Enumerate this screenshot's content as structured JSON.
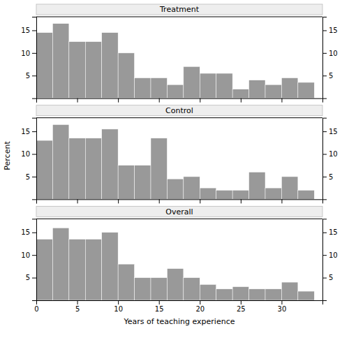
{
  "chart_data": [
    {
      "type": "histogram",
      "title": "Treatment",
      "bins": [
        0,
        2,
        4,
        6,
        8,
        10,
        12,
        14,
        16,
        18,
        20,
        22,
        24,
        26,
        28,
        30,
        32,
        34
      ],
      "values": [
        14.5,
        16.5,
        12.5,
        12.5,
        14.5,
        10.0,
        4.5,
        4.5,
        3.0,
        7.0,
        5.5,
        5.5,
        2.0,
        4.0,
        3.0,
        4.5,
        3.5
      ],
      "color": "#999999",
      "xlim": [
        0,
        35
      ],
      "ylim": [
        0,
        18
      ],
      "xticks": [
        0,
        5,
        10,
        15,
        20,
        25,
        30
      ],
      "yticks": [
        5,
        10,
        15
      ],
      "y2lim": [
        0,
        18
      ],
      "y2ticks": [
        5,
        10,
        15
      ],
      "tick_labels": "y"
    },
    {
      "type": "histogram",
      "title": "Control",
      "ylabel": "Percent",
      "bins": [
        0,
        2,
        4,
        6,
        8,
        10,
        12,
        14,
        16,
        18,
        20,
        22,
        24,
        26,
        28,
        30,
        32,
        34
      ],
      "values": [
        13.0,
        16.5,
        13.5,
        13.5,
        15.5,
        7.5,
        7.5,
        13.5,
        4.5,
        5.0,
        2.5,
        2.0,
        2.0,
        6.0,
        2.5,
        5.0,
        2.0
      ],
      "color": "#999999",
      "xlim": [
        0,
        35
      ],
      "ylim": [
        0,
        18
      ],
      "xticks": [
        0,
        5,
        10,
        15,
        20,
        25,
        30
      ],
      "yticks": [
        5,
        10,
        15
      ],
      "y2lim": [
        0,
        18
      ],
      "y2ticks": [
        5,
        10,
        15
      ],
      "tick_labels": "y"
    },
    {
      "type": "histogram",
      "title": "Overall",
      "xlabel": "Years of teaching experience",
      "bins": [
        0,
        2,
        4,
        6,
        8,
        10,
        12,
        14,
        16,
        18,
        20,
        22,
        24,
        26,
        28,
        30,
        32,
        34
      ],
      "values": [
        13.5,
        16.0,
        13.5,
        13.5,
        15.0,
        8.0,
        5.0,
        5.0,
        7.0,
        5.0,
        3.5,
        2.5,
        3.0,
        2.5,
        2.5,
        4.0,
        2.0
      ],
      "color": "#999999",
      "xlim": [
        0,
        35
      ],
      "ylim": [
        0,
        18
      ],
      "xticks": [
        0,
        5,
        10,
        15,
        20,
        25,
        30
      ],
      "yticks": [
        5,
        10,
        15
      ],
      "y2lim": [
        0,
        18
      ],
      "y2ticks": [
        5,
        10,
        15
      ]
    }
  ]
}
